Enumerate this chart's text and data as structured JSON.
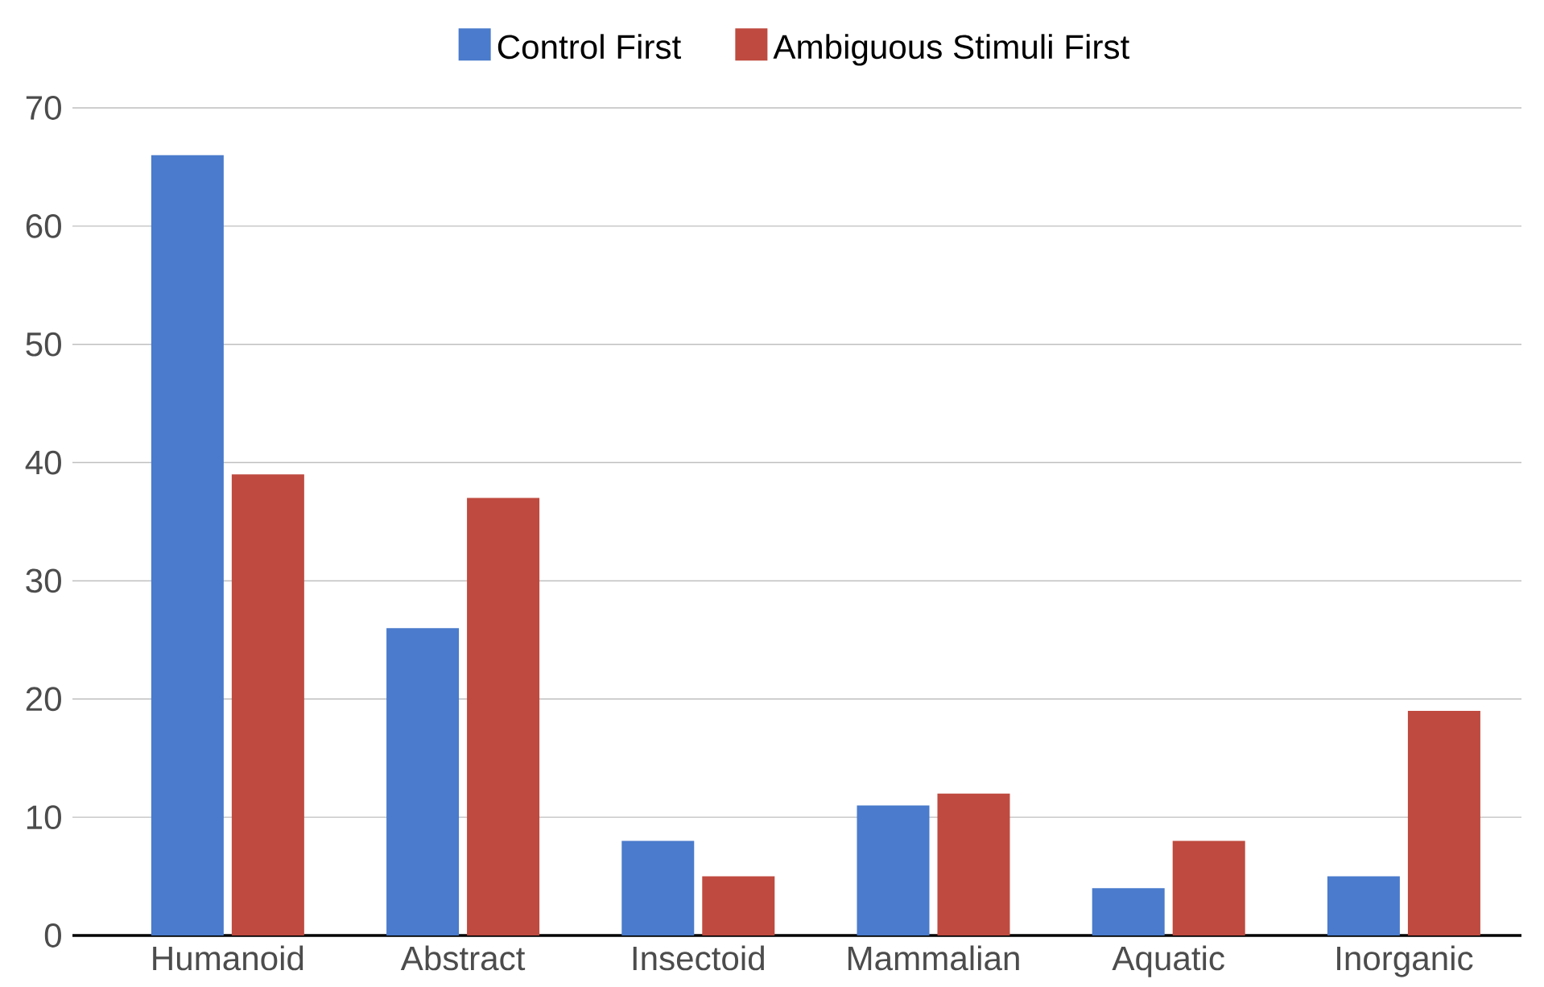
{
  "chart_data": {
    "type": "bar",
    "categories": [
      "Humanoid",
      "Abstract",
      "Insectoid",
      "Mammalian",
      "Aquatic",
      "Inorganic"
    ],
    "series": [
      {
        "name": "Control First",
        "color": "#4a7bcc",
        "values": [
          66,
          26,
          8,
          11,
          4,
          5
        ]
      },
      {
        "name": "Ambiguous Stimuli First",
        "color": "#bf4a3f",
        "values": [
          39,
          37,
          5,
          12,
          8,
          19
        ]
      }
    ],
    "ylim": [
      0,
      70
    ],
    "yticks": [
      0,
      10,
      20,
      30,
      40,
      50,
      60,
      70
    ],
    "grid": "y",
    "legend": "top"
  }
}
